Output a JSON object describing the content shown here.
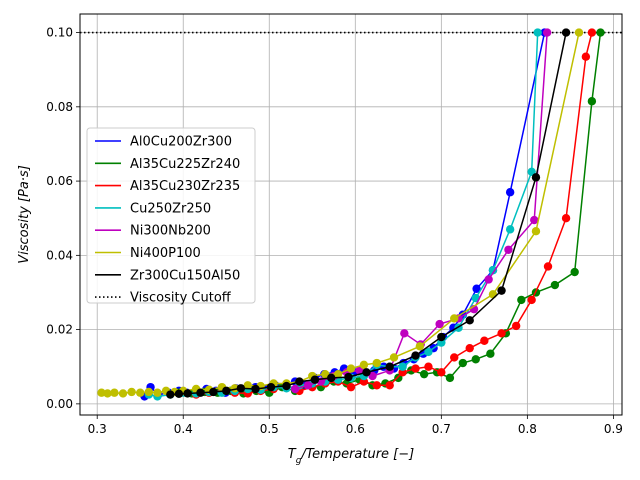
{
  "chart_data": {
    "type": "line",
    "title": "",
    "xlabel": "T_g/Temperature [−]",
    "xlabel_parts": {
      "main": "T",
      "sub": "g",
      "rest": "/Temperature [−]"
    },
    "ylabel": "Viscosity [Pa·s]",
    "xlim": [
      0.28,
      0.91
    ],
    "ylim": [
      -0.003,
      0.105
    ],
    "xticks": [
      0.3,
      0.4,
      0.5,
      0.6,
      0.7,
      0.8,
      0.9
    ],
    "xtick_labels": [
      "0.3",
      "0.4",
      "0.5",
      "0.6",
      "0.7",
      "0.8",
      "0.9"
    ],
    "yticks": [
      0.0,
      0.02,
      0.04,
      0.06,
      0.08,
      0.1
    ],
    "ytick_labels": [
      "0.00",
      "0.02",
      "0.04",
      "0.06",
      "0.08",
      "0.10"
    ],
    "grid": true,
    "legend_position": "center-left",
    "cutoff": {
      "name": "Viscosity Cutoff",
      "value": 0.1,
      "color": "#000000"
    },
    "series": [
      {
        "name": "Al0Cu200Zr300",
        "color": "#0000ff",
        "x": [
          0.355,
          0.362,
          0.371,
          0.383,
          0.395,
          0.404,
          0.416,
          0.427,
          0.438,
          0.449,
          0.461,
          0.472,
          0.484,
          0.495,
          0.507,
          0.518,
          0.53,
          0.541,
          0.553,
          0.564,
          0.576,
          0.587,
          0.599,
          0.61,
          0.622,
          0.633,
          0.645,
          0.656,
          0.668,
          0.679,
          0.691,
          0.702,
          0.714,
          0.725,
          0.741,
          0.76,
          0.78,
          0.82
        ],
        "y": [
          0.002,
          0.0045,
          0.0025,
          0.003,
          0.0035,
          0.003,
          0.0033,
          0.004,
          0.0035,
          0.003,
          0.0042,
          0.0035,
          0.0045,
          0.004,
          0.005,
          0.0045,
          0.006,
          0.005,
          0.007,
          0.008,
          0.0085,
          0.0095,
          0.0085,
          0.008,
          0.009,
          0.01,
          0.0095,
          0.011,
          0.012,
          0.0135,
          0.015,
          0.018,
          0.0205,
          0.024,
          0.031,
          0.036,
          0.057,
          0.1
        ]
      },
      {
        "name": "Al35Cu225Zr240",
        "color": "#008000",
        "x": [
          0.395,
          0.41,
          0.425,
          0.44,
          0.455,
          0.47,
          0.485,
          0.5,
          0.515,
          0.53,
          0.545,
          0.56,
          0.575,
          0.59,
          0.605,
          0.62,
          0.635,
          0.65,
          0.665,
          0.68,
          0.695,
          0.71,
          0.725,
          0.74,
          0.757,
          0.775,
          0.793,
          0.81,
          0.832,
          0.855,
          0.875,
          0.885
        ],
        "y": [
          0.003,
          0.0028,
          0.0032,
          0.003,
          0.0035,
          0.0028,
          0.0035,
          0.003,
          0.0045,
          0.0035,
          0.005,
          0.0045,
          0.006,
          0.0055,
          0.0065,
          0.005,
          0.0055,
          0.007,
          0.009,
          0.008,
          0.0085,
          0.007,
          0.011,
          0.012,
          0.0135,
          0.019,
          0.028,
          0.03,
          0.032,
          0.0355,
          0.0815,
          0.1
        ]
      },
      {
        "name": "Al35Cu230Zr235",
        "color": "#ff0000",
        "x": [
          0.415,
          0.43,
          0.445,
          0.46,
          0.475,
          0.49,
          0.505,
          0.52,
          0.535,
          0.55,
          0.565,
          0.58,
          0.595,
          0.61,
          0.625,
          0.64,
          0.655,
          0.67,
          0.685,
          0.7,
          0.715,
          0.733,
          0.75,
          0.77,
          0.787,
          0.805,
          0.824,
          0.845,
          0.868,
          0.875
        ],
        "y": [
          0.0025,
          0.003,
          0.0035,
          0.003,
          0.0028,
          0.0035,
          0.004,
          0.005,
          0.0035,
          0.0045,
          0.0055,
          0.006,
          0.0045,
          0.006,
          0.005,
          0.005,
          0.0085,
          0.0095,
          0.01,
          0.0085,
          0.0125,
          0.015,
          0.017,
          0.019,
          0.021,
          0.028,
          0.037,
          0.05,
          0.0935,
          0.1
        ]
      },
      {
        "name": "Cu250Zr250",
        "color": "#00bfbf",
        "x": [
          0.36,
          0.37,
          0.385,
          0.4,
          0.415,
          0.43,
          0.445,
          0.46,
          0.475,
          0.49,
          0.505,
          0.52,
          0.535,
          0.55,
          0.565,
          0.58,
          0.595,
          0.61,
          0.625,
          0.64,
          0.655,
          0.67,
          0.685,
          0.7,
          0.72,
          0.74,
          0.76,
          0.78,
          0.805,
          0.812
        ],
        "y": [
          0.0025,
          0.002,
          0.0025,
          0.003,
          0.0028,
          0.0032,
          0.003,
          0.0035,
          0.004,
          0.0038,
          0.0045,
          0.0042,
          0.005,
          0.0055,
          0.006,
          0.0065,
          0.007,
          0.0075,
          0.0105,
          0.01,
          0.01,
          0.0125,
          0.014,
          0.0165,
          0.0205,
          0.0285,
          0.036,
          0.047,
          0.0625,
          0.1
        ]
      },
      {
        "name": "Ni300Nb200",
        "color": "#bf00bf",
        "x": [
          0.53,
          0.545,
          0.56,
          0.575,
          0.59,
          0.605,
          0.62,
          0.64,
          0.657,
          0.676,
          0.698,
          0.72,
          0.738,
          0.755,
          0.778,
          0.808,
          0.823
        ],
        "y": [
          0.004,
          0.005,
          0.006,
          0.0075,
          0.0085,
          0.009,
          0.0075,
          0.009,
          0.019,
          0.016,
          0.0215,
          0.023,
          0.0255,
          0.0335,
          0.0415,
          0.0495,
          0.1
        ]
      },
      {
        "name": "Ni400P100",
        "color": "#bfbf00",
        "x": [
          0.305,
          0.312,
          0.32,
          0.33,
          0.34,
          0.35,
          0.36,
          0.37,
          0.38,
          0.39,
          0.4,
          0.415,
          0.43,
          0.445,
          0.46,
          0.475,
          0.49,
          0.505,
          0.52,
          0.535,
          0.55,
          0.565,
          0.58,
          0.595,
          0.61,
          0.625,
          0.645,
          0.675,
          0.715,
          0.76,
          0.81,
          0.86
        ],
        "y": [
          0.003,
          0.0028,
          0.003,
          0.0028,
          0.0032,
          0.003,
          0.0032,
          0.003,
          0.0035,
          0.0032,
          0.0035,
          0.004,
          0.0038,
          0.0045,
          0.0042,
          0.005,
          0.0048,
          0.0055,
          0.0055,
          0.006,
          0.0075,
          0.008,
          0.008,
          0.0095,
          0.0105,
          0.011,
          0.0125,
          0.0155,
          0.023,
          0.0295,
          0.0465,
          0.1
        ]
      },
      {
        "name": "Zr300Cu150Al50",
        "color": "#000000",
        "x": [
          0.385,
          0.395,
          0.405,
          0.42,
          0.435,
          0.45,
          0.467,
          0.484,
          0.502,
          0.52,
          0.535,
          0.553,
          0.572,
          0.592,
          0.613,
          0.64,
          0.67,
          0.7,
          0.733,
          0.77,
          0.81,
          0.845
        ],
        "y": [
          0.0025,
          0.0027,
          0.0028,
          0.003,
          0.0032,
          0.0035,
          0.0042,
          0.004,
          0.0045,
          0.0048,
          0.006,
          0.0065,
          0.007,
          0.0072,
          0.0085,
          0.01,
          0.013,
          0.018,
          0.0225,
          0.0305,
          0.061,
          0.1
        ]
      }
    ]
  }
}
